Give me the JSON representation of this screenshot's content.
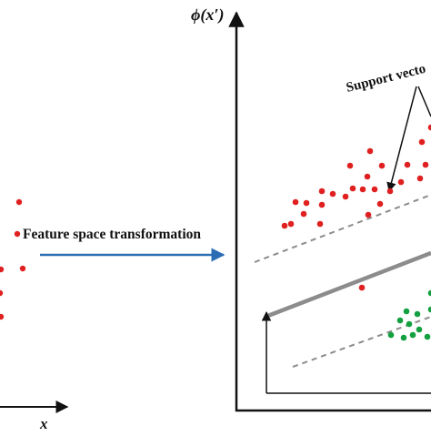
{
  "diagram": {
    "left_axis_label": "x",
    "right_axis_label": "ϕ(x′)",
    "arrow_label": "Feature space transformation",
    "callout_label": "Support vecto",
    "colors": {
      "red_points": "#e02020",
      "green_points": "#12a040",
      "arrow": "#2a6db5",
      "hyperplane": "#8c8c8c",
      "margin": "#8c8c8c",
      "axes": "#111111"
    }
  }
}
